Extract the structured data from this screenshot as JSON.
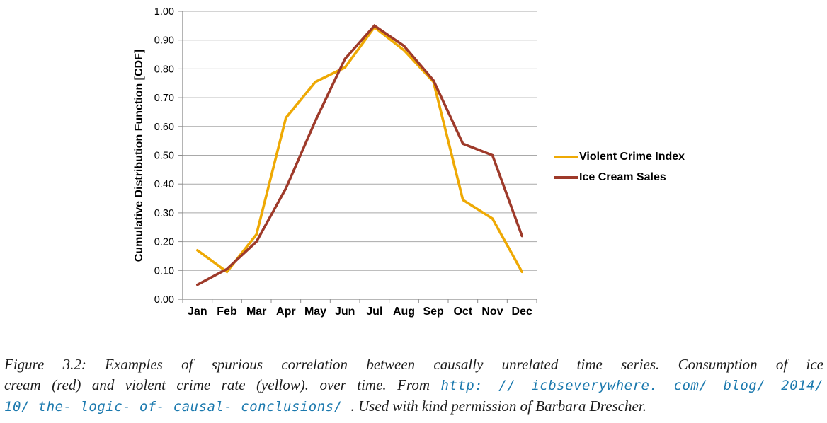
{
  "chart_data": {
    "type": "line",
    "categories": [
      "Jan",
      "Feb",
      "Mar",
      "Apr",
      "May",
      "Jun",
      "Jul",
      "Aug",
      "Sep",
      "Oct",
      "Nov",
      "Dec"
    ],
    "series": [
      {
        "name": "Violent Crime Index",
        "color": "#EEA904",
        "values": [
          0.17,
          0.095,
          0.225,
          0.63,
          0.755,
          0.805,
          0.945,
          0.865,
          0.755,
          0.345,
          0.28,
          0.095
        ]
      },
      {
        "name": "Ice Cream Sales",
        "color": "#9E3A2A",
        "values": [
          0.05,
          0.105,
          0.2,
          0.385,
          0.62,
          0.835,
          0.95,
          0.88,
          0.76,
          0.54,
          0.5,
          0.22
        ]
      }
    ],
    "title": "",
    "xlabel": "",
    "ylabel": "Cumulative Distribution Function [CDF]",
    "ylim": [
      0.0,
      1.0
    ],
    "ytick_step": 0.1,
    "ytick_labels": [
      "0.00",
      "0.10",
      "0.20",
      "0.30",
      "0.40",
      "0.50",
      "0.60",
      "0.70",
      "0.80",
      "0.90",
      "1.00"
    ],
    "grid": true,
    "legend_position": "right"
  },
  "legend": {
    "items": [
      {
        "label": "Violent Crime Index"
      },
      {
        "label": "Ice Cream Sales"
      }
    ]
  },
  "caption": {
    "line1": "Figure 3.2: Examples of spurious correlation between causally unrelated time series. Consumption of ice",
    "line2_text": "cream (red) and violent crime rate (yellow). over time. From ",
    "line2_url": "http: // icbseverywhere. com/ blog/ 2014/",
    "line3_url": "10/ the- logic- of- causal- conclusions/ ",
    "line3_text": ". Used with kind permission of Barbara Drescher."
  },
  "colors": {
    "grid": "#A9A9A9",
    "axis": "#8C8C8C",
    "tick_label": "#000000",
    "axis_title": "#000000",
    "url_link": "#1B79AE"
  }
}
